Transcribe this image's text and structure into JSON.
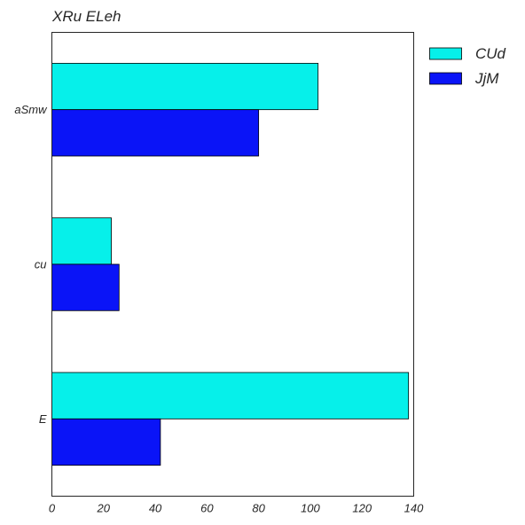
{
  "chart_data": {
    "type": "bar",
    "orientation": "horizontal",
    "title": "XRu ELeh",
    "xlabel": "",
    "ylabel": "",
    "categories": [
      "aSmw",
      "cu",
      "E"
    ],
    "series": [
      {
        "name": "CUd",
        "values": [
          103,
          23,
          138
        ],
        "color": "#06f0ea"
      },
      {
        "name": "JjM",
        "values": [
          80,
          26,
          42
        ],
        "color": "#0a14f7"
      }
    ],
    "xlim": [
      0,
      140
    ],
    "xticks": [
      0,
      20,
      40,
      60,
      80,
      100,
      120,
      140
    ],
    "grid": false,
    "legend_position": "outside-top-right"
  }
}
